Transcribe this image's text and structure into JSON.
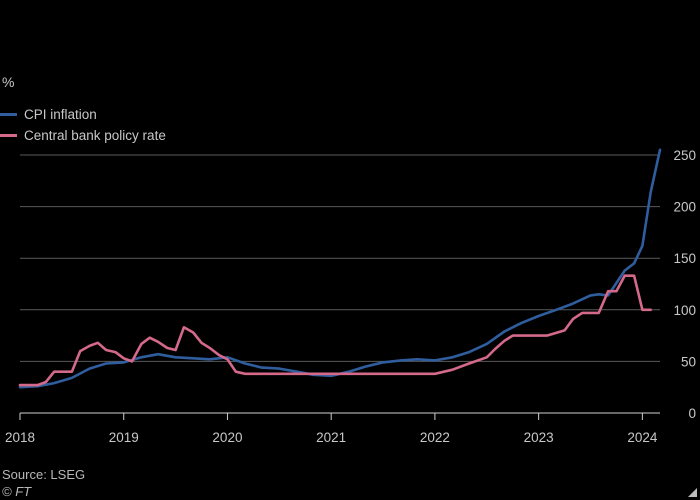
{
  "chart_data": {
    "type": "line",
    "ylabel": "%",
    "ylim": [
      0,
      250
    ],
    "yticks": [
      0,
      50,
      100,
      150,
      200,
      250
    ],
    "xlim": [
      2018.0,
      2024.0
    ],
    "xticks": [
      "2018",
      "2019",
      "2020",
      "2021",
      "2022",
      "2023",
      "2024"
    ],
    "grid": true,
    "legend_position": "top-left",
    "series": [
      {
        "name": "CPI inflation",
        "color": "#2f5d9e",
        "points": [
          [
            2018.0,
            25
          ],
          [
            2018.17,
            26
          ],
          [
            2018.33,
            29
          ],
          [
            2018.5,
            34
          ],
          [
            2018.67,
            43
          ],
          [
            2018.83,
            48
          ],
          [
            2019.0,
            49
          ],
          [
            2019.17,
            54
          ],
          [
            2019.33,
            57
          ],
          [
            2019.5,
            54
          ],
          [
            2019.67,
            53
          ],
          [
            2019.83,
            52
          ],
          [
            2020.0,
            54
          ],
          [
            2020.17,
            48
          ],
          [
            2020.33,
            44
          ],
          [
            2020.5,
            43
          ],
          [
            2020.67,
            40
          ],
          [
            2020.83,
            37
          ],
          [
            2021.0,
            36
          ],
          [
            2021.17,
            40
          ],
          [
            2021.33,
            45
          ],
          [
            2021.5,
            49
          ],
          [
            2021.67,
            51
          ],
          [
            2021.83,
            52
          ],
          [
            2022.0,
            51
          ],
          [
            2022.17,
            54
          ],
          [
            2022.33,
            59
          ],
          [
            2022.5,
            67
          ],
          [
            2022.67,
            79
          ],
          [
            2022.83,
            87
          ],
          [
            2023.0,
            94
          ],
          [
            2023.17,
            100
          ],
          [
            2023.33,
            106
          ],
          [
            2023.5,
            114
          ],
          [
            2023.58,
            115
          ],
          [
            2023.67,
            114
          ],
          [
            2023.83,
            138
          ],
          [
            2023.92,
            145
          ],
          [
            2024.0,
            162
          ],
          [
            2024.08,
            214
          ],
          [
            2024.17,
            255
          ]
        ]
      },
      {
        "name": "Central bank policy rate",
        "color": "#d4698a",
        "points": [
          [
            2018.0,
            27
          ],
          [
            2018.17,
            27
          ],
          [
            2018.25,
            30
          ],
          [
            2018.33,
            40
          ],
          [
            2018.5,
            40
          ],
          [
            2018.58,
            60
          ],
          [
            2018.67,
            65
          ],
          [
            2018.75,
            68
          ],
          [
            2018.83,
            61
          ],
          [
            2018.92,
            59
          ],
          [
            2019.0,
            53
          ],
          [
            2019.08,
            50
          ],
          [
            2019.17,
            67
          ],
          [
            2019.25,
            73
          ],
          [
            2019.33,
            69
          ],
          [
            2019.42,
            63
          ],
          [
            2019.5,
            61
          ],
          [
            2019.58,
            83
          ],
          [
            2019.67,
            78
          ],
          [
            2019.75,
            68
          ],
          [
            2019.83,
            63
          ],
          [
            2019.92,
            56
          ],
          [
            2020.0,
            52
          ],
          [
            2020.08,
            40
          ],
          [
            2020.17,
            38
          ],
          [
            2020.33,
            38
          ],
          [
            2020.5,
            38
          ],
          [
            2020.67,
            38
          ],
          [
            2020.83,
            38
          ],
          [
            2021.0,
            38
          ],
          [
            2021.25,
            38
          ],
          [
            2021.5,
            38
          ],
          [
            2021.75,
            38
          ],
          [
            2022.0,
            38
          ],
          [
            2022.17,
            42
          ],
          [
            2022.33,
            48
          ],
          [
            2022.5,
            54
          ],
          [
            2022.58,
            62
          ],
          [
            2022.67,
            70
          ],
          [
            2022.75,
            75
          ],
          [
            2022.92,
            75
          ],
          [
            2023.08,
            75
          ],
          [
            2023.25,
            80
          ],
          [
            2023.33,
            91
          ],
          [
            2023.42,
            97
          ],
          [
            2023.5,
            97
          ],
          [
            2023.58,
            97
          ],
          [
            2023.67,
            118
          ],
          [
            2023.75,
            118
          ],
          [
            2023.83,
            133
          ],
          [
            2023.92,
            133
          ],
          [
            2024.0,
            100
          ],
          [
            2024.08,
            100
          ]
        ]
      }
    ]
  },
  "source": "Source: LSEG",
  "copyright": "© FT"
}
